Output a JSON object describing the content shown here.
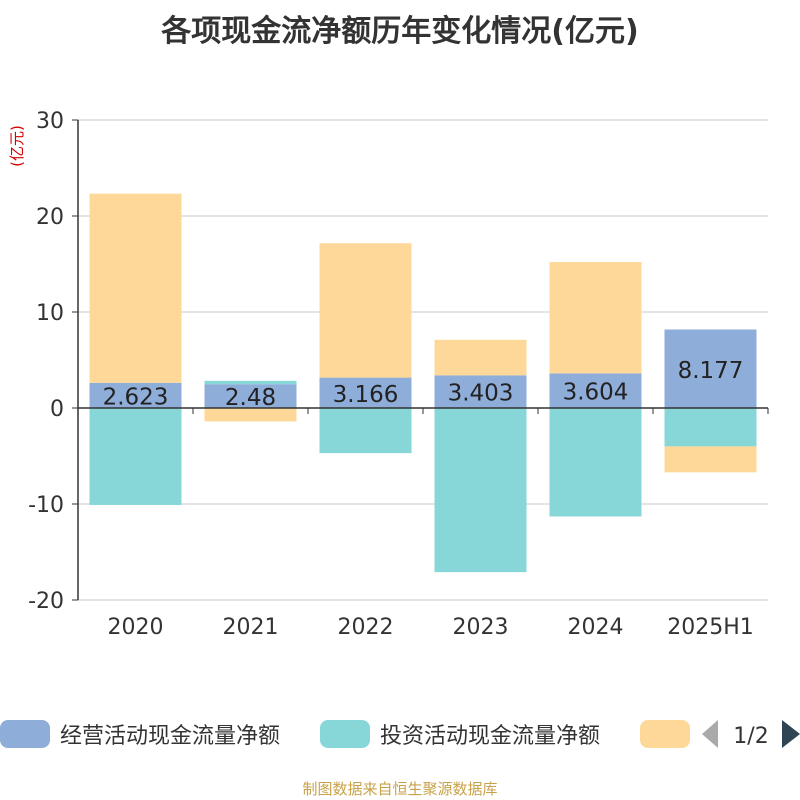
{
  "colors": {
    "operating": "#8fadd9",
    "investing": "#87d6d8",
    "financing": "#fed899",
    "unit_label": "#d40000",
    "source_text": "#c8a24a",
    "pager_active": "#2f4554",
    "pager_inactive": "#aaaaaa"
  },
  "legend": {
    "items": [
      {
        "label": "经营活动现金流量净额",
        "color": "#8fadd9"
      },
      {
        "label": "投资活动现金流量净额",
        "color": "#87d6d8"
      },
      {
        "label": "",
        "color": "#fed899"
      }
    ],
    "page": "1/2"
  },
  "source": "制图数据来自恒生聚源数据库",
  "chart_data": {
    "type": "bar",
    "stacked": true,
    "title": "各项现金流净额历年变化情况(亿元)",
    "ylabel": "(亿元)",
    "xlabel": "",
    "ylim": [
      -20,
      30
    ],
    "yticks": [
      30,
      20,
      10,
      0,
      -10,
      -20
    ],
    "grid": true,
    "legend_position": "bottom",
    "categories": [
      "2020",
      "2021",
      "2022",
      "2023",
      "2024",
      "2025H1"
    ],
    "series": [
      {
        "name": "经营活动现金流量净额",
        "values": [
          2.623,
          2.48,
          3.166,
          3.403,
          3.604,
          8.177
        ],
        "labels": [
          "2.623",
          "2.48",
          "3.166",
          "3.403",
          "3.604",
          "8.177"
        ]
      },
      {
        "name": "投资活动现金流量净额",
        "values": [
          -10.1,
          0.35,
          -4.7,
          -17.1,
          -11.3,
          -4.0
        ]
      },
      {
        "name": "",
        "values": [
          19.7,
          -1.4,
          14.0,
          3.7,
          11.6,
          -2.7
        ]
      }
    ]
  }
}
